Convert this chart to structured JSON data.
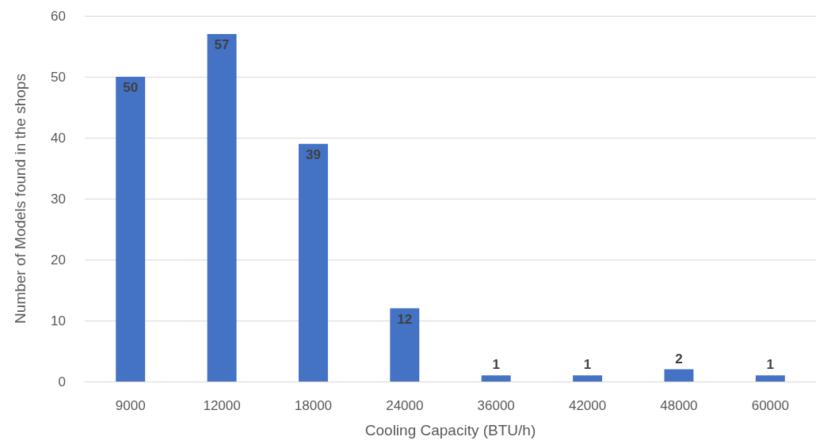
{
  "chart_data": {
    "type": "bar",
    "xlabel": "Cooling Capacity (BTU/h)",
    "ylabel": "Number of Models found in the shops",
    "categories": [
      "9000",
      "12000",
      "18000",
      "24000",
      "36000",
      "42000",
      "48000",
      "60000"
    ],
    "values": [
      50,
      57,
      39,
      12,
      1,
      1,
      2,
      1
    ],
    "color": "#4472c4",
    "ylim": [
      0,
      60
    ],
    "yticks": [
      0,
      10,
      20,
      30,
      40,
      50,
      60
    ],
    "grid": "y",
    "data_labels": true
  }
}
